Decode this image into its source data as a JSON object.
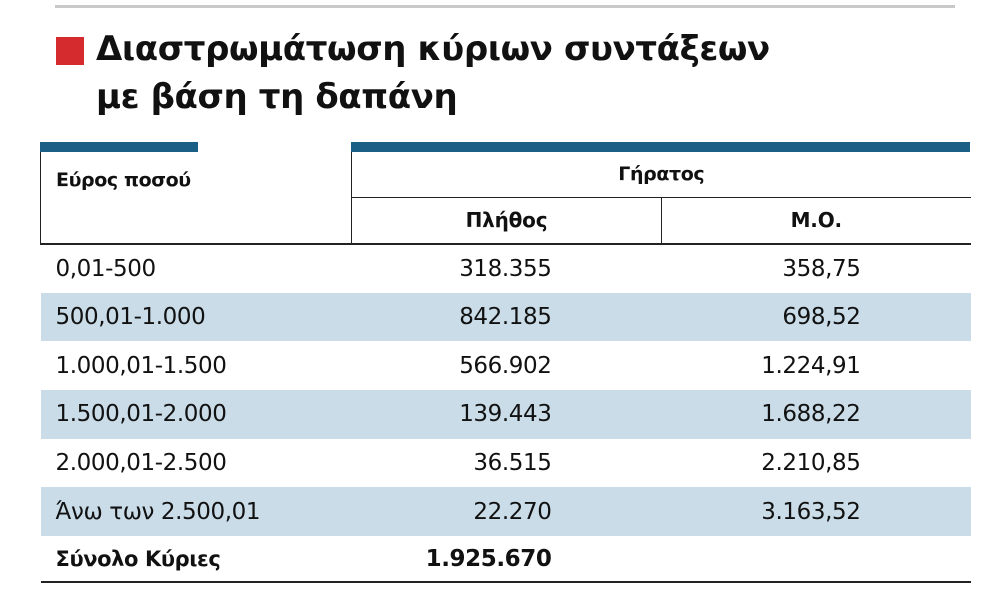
{
  "title": {
    "line1": "Διαστρωμάτωση κύριων συντάξεων",
    "line2": "με βάση τη δαπάνη"
  },
  "colors": {
    "accent_red": "#d52b2e",
    "header_blue": "#1c5f86",
    "row_shade": "#c9dce8"
  },
  "table": {
    "range_header": "Εύρος ποσού",
    "group_header": "Γήρατος",
    "count_header": "Πλήθος",
    "avg_header": "Μ.Ο.",
    "rows": [
      {
        "range": "0,01-500",
        "count": "318.355",
        "avg": "358,75"
      },
      {
        "range": "500,01-1.000",
        "count": "842.185",
        "avg": "698,52"
      },
      {
        "range": "1.000,01-1.500",
        "count": "566.902",
        "avg": "1.224,91"
      },
      {
        "range": "1.500,01-2.000",
        "count": "139.443",
        "avg": "1.688,22"
      },
      {
        "range": "2.000,01-2.500",
        "count": "36.515",
        "avg": "2.210,85"
      },
      {
        "range": "Άνω των 2.500,01",
        "count": "22.270",
        "avg": "3.163,52"
      }
    ],
    "total": {
      "label": "Σύνολο Κύριες",
      "count": "1.925.670"
    }
  }
}
